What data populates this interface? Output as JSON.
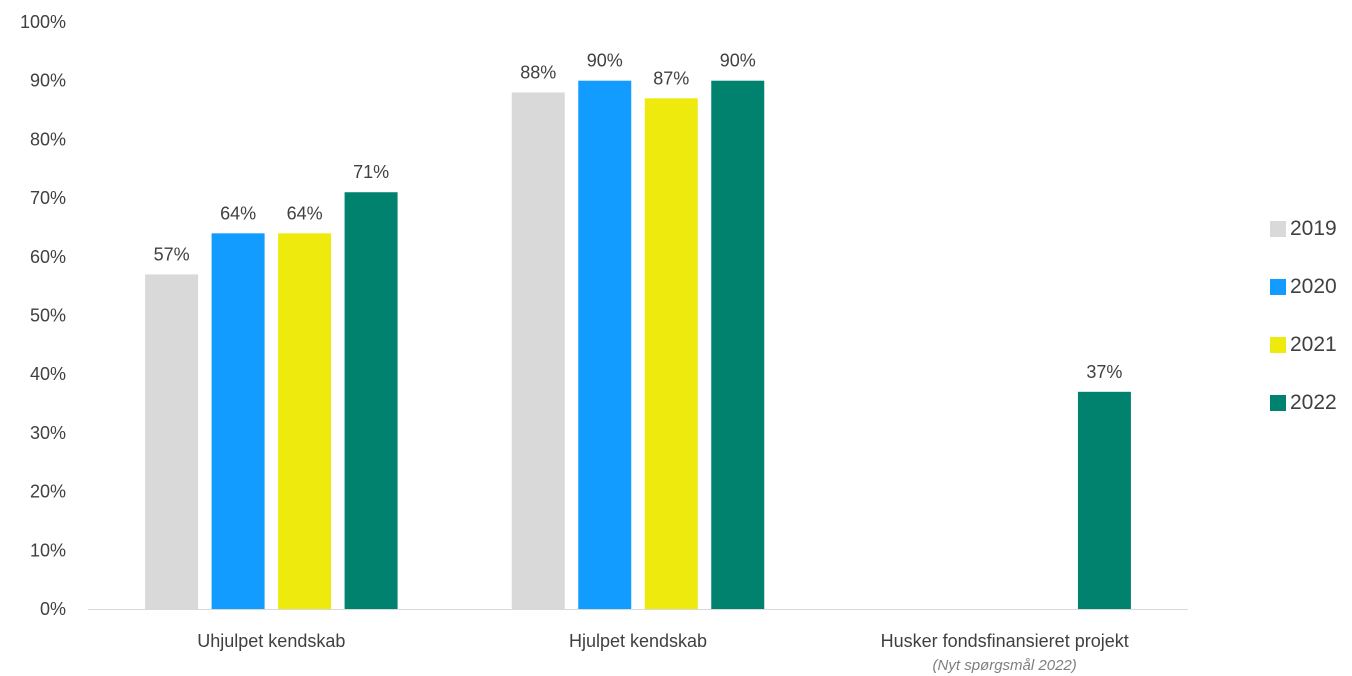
{
  "chart_data": {
    "type": "bar",
    "categories": [
      "Uhjulpet kendskab",
      "Hjulpet kendskab",
      "Husker fondsfinansieret projekt"
    ],
    "category_notes": [
      "",
      "",
      "(Nyt spørgsmål 2022)"
    ],
    "series": [
      {
        "name": "2019",
        "color": "#d9d9d9",
        "values": [
          57,
          88,
          null
        ]
      },
      {
        "name": "2020",
        "color": "#129cff",
        "values": [
          64,
          90,
          null
        ]
      },
      {
        "name": "2021",
        "color": "#eeea0e",
        "values": [
          64,
          87,
          null
        ]
      },
      {
        "name": "2022",
        "color": "#00826f",
        "values": [
          71,
          90,
          37
        ]
      }
    ],
    "value_format": "{v}%",
    "ylim": [
      0,
      100
    ],
    "yticks": [
      0,
      10,
      20,
      30,
      40,
      50,
      60,
      70,
      80,
      90,
      100
    ],
    "ytick_labels": [
      "0%",
      "10%",
      "20%",
      "30%",
      "40%",
      "50%",
      "60%",
      "70%",
      "80%",
      "90%",
      "100%"
    ],
    "grid": false,
    "legend_position": "right",
    "title": "",
    "xlabel": "",
    "ylabel": ""
  }
}
